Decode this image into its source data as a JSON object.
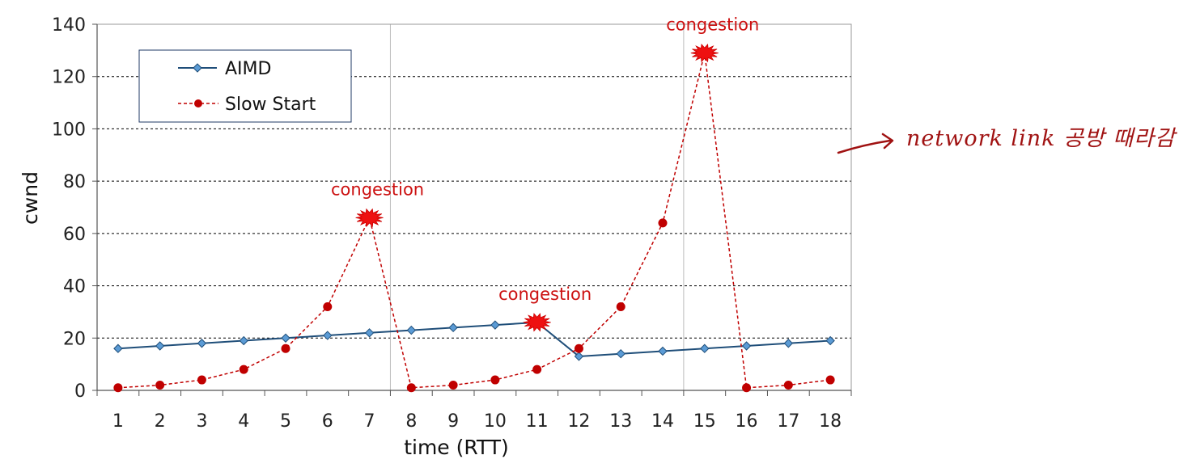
{
  "chart_data": {
    "type": "line",
    "title": "",
    "xlabel": "time (RTT)",
    "ylabel": "cwnd",
    "categories": [
      "1",
      "2",
      "3",
      "4",
      "5",
      "6",
      "7",
      "8",
      "9",
      "10",
      "11",
      "12",
      "13",
      "14",
      "15",
      "16",
      "17",
      "18"
    ],
    "ylim": [
      0,
      140
    ],
    "yticks": [
      "0",
      "20",
      "40",
      "60",
      "80",
      "100",
      "120",
      "140"
    ],
    "grid": "horizontal dashed",
    "legend_position": "top-left",
    "series": [
      {
        "name": "AIMD",
        "color": "#1f4e79",
        "style": "solid",
        "marker": "diamond",
        "values": [
          16,
          17,
          18,
          19,
          20,
          21,
          22,
          23,
          24,
          25,
          26,
          13,
          14,
          15,
          16,
          17,
          18,
          19
        ]
      },
      {
        "name": "Slow Start",
        "color": "#c00000",
        "style": "dashed",
        "marker": "circle",
        "values": [
          1,
          2,
          4,
          8,
          16,
          32,
          66,
          1,
          2,
          4,
          8,
          16,
          32,
          64,
          129,
          1,
          2,
          4
        ]
      }
    ],
    "congestion_points": [
      {
        "x": 7,
        "y": 66,
        "series": "Slow Start"
      },
      {
        "x": 11,
        "y": 26,
        "series": "AIMD"
      },
      {
        "x": 15,
        "y": 129,
        "series": "Slow Start"
      }
    ],
    "annotations": [
      {
        "text": "congestion",
        "x": 7,
        "y": 66
      },
      {
        "text": "congestion",
        "x": 11,
        "y": 26
      },
      {
        "text": "congestion",
        "x": 15,
        "y": 129
      }
    ]
  },
  "handwritten_note": "network link 공방 때라감"
}
